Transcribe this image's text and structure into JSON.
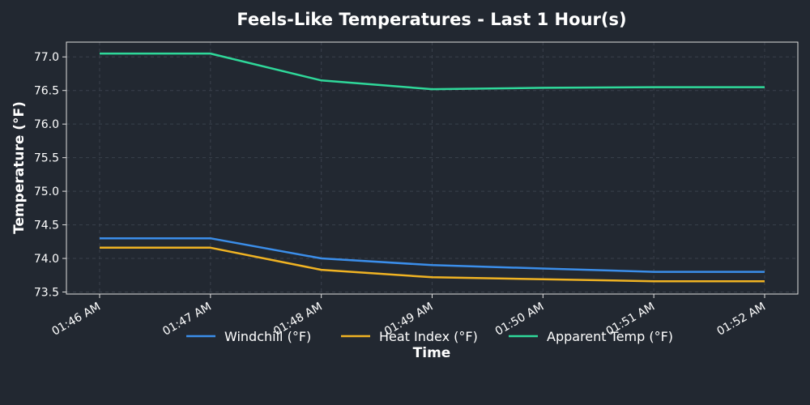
{
  "chart_data": {
    "type": "line",
    "title": "Feels-Like Temperatures - Last 1 Hour(s)",
    "xlabel": "Time",
    "ylabel": "Temperature (°F)",
    "categories": [
      "01:46 AM",
      "01:47 AM",
      "01:48 AM",
      "01:49 AM",
      "01:50 AM",
      "01:51 AM",
      "01:52 AM"
    ],
    "yticks": [
      "73.5",
      "74.0",
      "74.5",
      "75.0",
      "75.5",
      "76.0",
      "76.5",
      "77.0"
    ],
    "ylim": [
      73.47,
      77.22
    ],
    "grid": true,
    "legend_position": "bottom-center",
    "series": [
      {
        "name": "Windchill (°F)",
        "color": "#3b8eea",
        "values": [
          74.3,
          74.3,
          74.0,
          73.9,
          73.85,
          73.8,
          73.8
        ]
      },
      {
        "name": "Heat Index (°F)",
        "color": "#f0b323",
        "values": [
          74.16,
          74.16,
          73.83,
          73.72,
          73.69,
          73.66,
          73.66
        ]
      },
      {
        "name": "Apparent Temp (°F)",
        "color": "#2fd89a",
        "values": [
          77.05,
          77.05,
          76.65,
          76.52,
          76.54,
          76.55,
          76.55
        ]
      }
    ]
  },
  "colors": {
    "background": "#222831",
    "text": "#ffffff",
    "grid": "#3a414c",
    "frame": "#e0e0e0"
  }
}
